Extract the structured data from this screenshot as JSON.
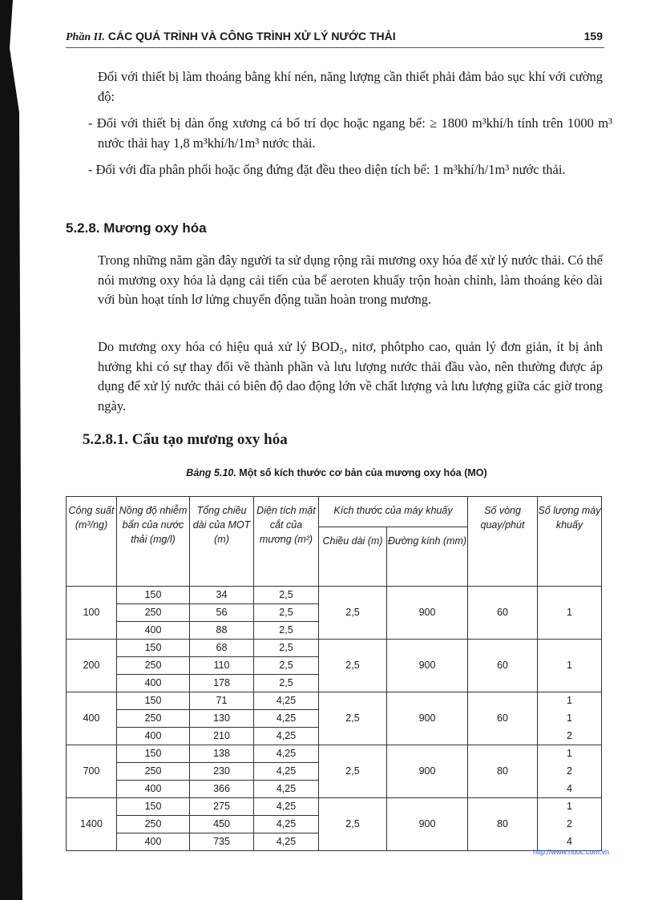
{
  "header": {
    "part": "Phần II.",
    "title": "CÁC QUÁ TRÌNH VÀ CÔNG TRÌNH XỬ LÝ NƯỚC THẢI",
    "page_number": "159"
  },
  "paragraphs": {
    "p1": "Đối với thiết bị làm thoáng bằng khí nén, năng lượng cần thiết phải đảm bảo sục khí với cường độ:",
    "b1": "- Đối với thiết bị dàn ống xương cá bố trí dọc hoặc ngang bể: ≥ 1800 m³khí/h tính trên 1000 m³ nước thải hay 1,8 m³khí/h/1m³ nước thải.",
    "b2": "- Đối với đĩa phân phối hoặc ống đứng đặt đều theo diện tích bể: 1 m³khí/h/1m³ nước thải.",
    "h1": "5.2.8. Mương oxy hóa",
    "p2": "Trong những năm gần đây người ta sử dụng rộng rãi mương oxy hóa để xử lý nước thải. Có thể nói mương oxy hóa là dạng cải tiến của bể aeroten khuấy trộn hoàn chỉnh, làm thoáng kéo dài với bùn hoạt tính lơ lửng chuyển động tuần hoàn trong mương.",
    "p3": "Do mương oxy hóa có hiệu quả xử lý BOD₅, nitơ, phôtpho cao, quản lý đơn giản, ít bị ảnh hưởng khi có sự thay đổi về thành phần và lưu lượng nước thải đầu vào, nên thường được áp dụng để xử lý nước thải có biên độ dao động lớn về chất lượng và lưu lượng giữa các giờ trong ngày.",
    "h2": "5.2.8.1. Cấu tạo mương oxy hóa"
  },
  "table": {
    "caption_label": "Bảng 5.10.",
    "caption_text": " Một số kích thước cơ bản của mương oxy hóa (MO)",
    "headers": {
      "c1": "Công suất (m³/ng)",
      "c2": "Nồng độ nhiễm bẩn của nước thải (mg/l)",
      "c3": "Tổng chiều dài của MOT (m)",
      "c4": "Diện tích mặt cắt của mương (m²)",
      "c5": "Kích thước của máy khuấy",
      "c5a": "Chiều dài (m)",
      "c5b": "Đường kính (mm)",
      "c6": "Số vòng quay/phút",
      "c7": "Số lượng máy khuấy"
    },
    "groups": [
      {
        "capacity": "100",
        "length": "2,5",
        "diameter": "900",
        "rpm": "60",
        "rows": [
          [
            "150",
            "34",
            "2,5",
            ""
          ],
          [
            "250",
            "56",
            "2,5",
            "1"
          ],
          [
            "400",
            "88",
            "2,5",
            ""
          ]
        ]
      },
      {
        "capacity": "200",
        "length": "2,5",
        "diameter": "900",
        "rpm": "60",
        "rows": [
          [
            "150",
            "68",
            "2,5",
            ""
          ],
          [
            "250",
            "110",
            "2,5",
            "1"
          ],
          [
            "400",
            "178",
            "2,5",
            ""
          ]
        ]
      },
      {
        "capacity": "400",
        "length": "2,5",
        "diameter": "900",
        "rpm": "60",
        "rows": [
          [
            "150",
            "71",
            "4,25",
            "1"
          ],
          [
            "250",
            "130",
            "4,25",
            "1"
          ],
          [
            "400",
            "210",
            "4,25",
            "2"
          ]
        ]
      },
      {
        "capacity": "700",
        "length": "2,5",
        "diameter": "900",
        "rpm": "80",
        "rows": [
          [
            "150",
            "138",
            "4,25",
            "1"
          ],
          [
            "250",
            "230",
            "4,25",
            "2"
          ],
          [
            "400",
            "366",
            "4,25",
            "4"
          ]
        ]
      },
      {
        "capacity": "1400",
        "length": "2,5",
        "diameter": "900",
        "rpm": "80",
        "rows": [
          [
            "150",
            "275",
            "4,25",
            "1"
          ],
          [
            "250",
            "450",
            "4,25",
            "2"
          ],
          [
            "400",
            "735",
            "4,25",
            "4"
          ]
        ]
      }
    ]
  },
  "footer": {
    "url": "http://www.nuoc.com.vn"
  }
}
